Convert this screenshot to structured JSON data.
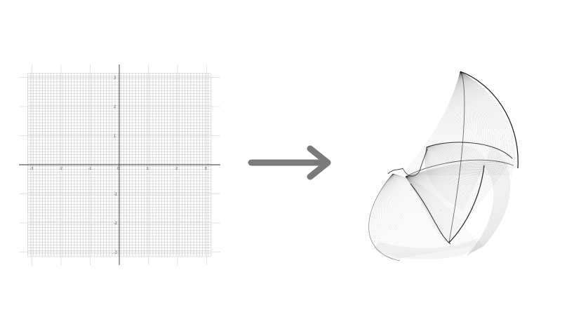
{
  "diagram": {
    "left_panel": {
      "kind": "dense-cartesian-grid",
      "x_range": [
        -3,
        3
      ],
      "y_range": [
        -3,
        3
      ],
      "x_tick_labels": [
        "-3",
        "-2",
        "-1",
        "0",
        "1",
        "2",
        "3"
      ],
      "y_tick_labels": [
        "3",
        "2",
        "1",
        "-1",
        "-2",
        "-3"
      ],
      "fine_lines_per_unit": 10,
      "line_color": "#8a8a8a",
      "axis_color": "#333333"
    },
    "arrow": {
      "icon": "right-arrow-icon",
      "color": "#7a7a7a"
    },
    "right_panel": {
      "kind": "warped-grid-surface",
      "line_color": "#000000"
    }
  }
}
